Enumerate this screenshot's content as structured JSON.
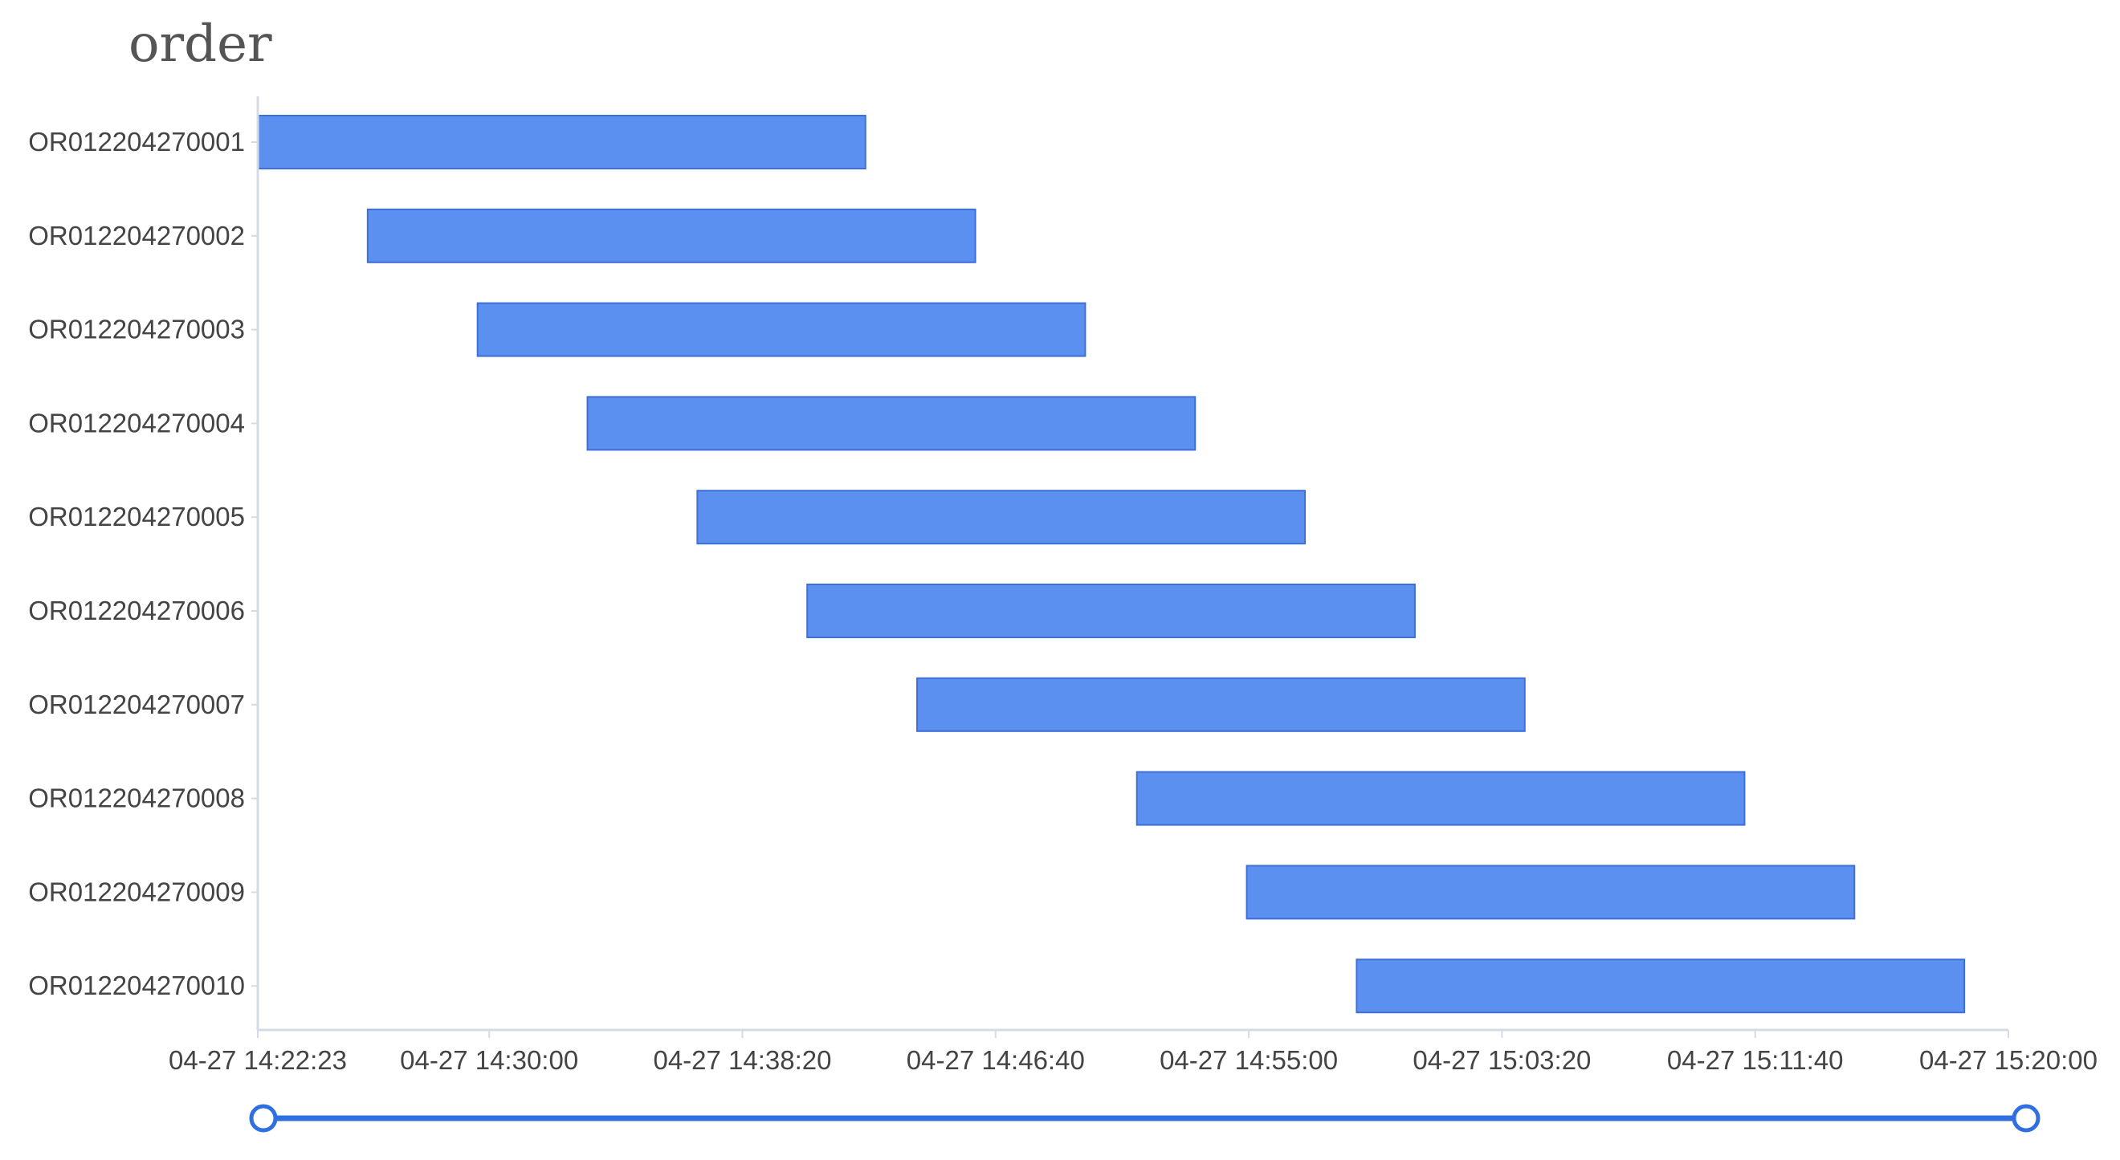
{
  "chart_data": {
    "type": "bar",
    "orientation": "horizontal-gantt",
    "title": "order",
    "categories": [
      "OR012204270001",
      "OR012204270002",
      "OR012204270003",
      "OR012204270004",
      "OR012204270005",
      "OR012204270006",
      "OR012204270007",
      "OR012204270008",
      "OR012204270009",
      "OR012204270010"
    ],
    "ranges": [
      {
        "start": "04-27 14:22:23",
        "end": "04-27 14:42:23"
      },
      {
        "start": "04-27 14:26:00",
        "end": "04-27 14:46:00"
      },
      {
        "start": "04-27 14:29:37",
        "end": "04-27 14:49:37"
      },
      {
        "start": "04-27 14:33:14",
        "end": "04-27 14:53:14"
      },
      {
        "start": "04-27 14:36:51",
        "end": "04-27 14:56:51"
      },
      {
        "start": "04-27 14:40:28",
        "end": "04-27 15:00:28"
      },
      {
        "start": "04-27 14:44:05",
        "end": "04-27 15:04:05"
      },
      {
        "start": "04-27 14:51:19",
        "end": "04-27 15:11:19"
      },
      {
        "start": "04-27 14:54:56",
        "end": "04-27 15:14:56"
      },
      {
        "start": "04-27 14:58:33",
        "end": "04-27 15:18:33"
      }
    ],
    "x_ticks": [
      "04-27 14:22:23",
      "04-27 14:30:00",
      "04-27 14:38:20",
      "04-27 14:46:40",
      "04-27 14:55:00",
      "04-27 15:03:20",
      "04-27 15:11:40",
      "04-27 15:20:00"
    ],
    "xlim": [
      "04-27 14:22:23",
      "04-27 15:20:00"
    ],
    "grid": false,
    "bar_color": "#5b8ff0",
    "zoom_slider": {
      "start_fraction": 0,
      "end_fraction": 1
    }
  }
}
